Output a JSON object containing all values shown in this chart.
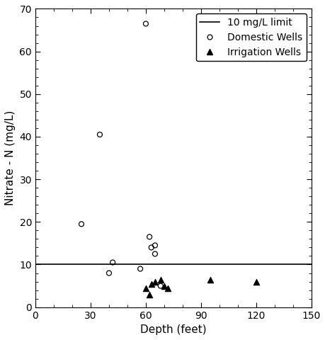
{
  "domestic_wells": {
    "depth": [
      25,
      35,
      40,
      42,
      57,
      60,
      62,
      63,
      65,
      65,
      68
    ],
    "nitrate": [
      19.5,
      40.5,
      8.0,
      10.5,
      9.0,
      66.5,
      16.5,
      14.0,
      14.5,
      12.5,
      5.0
    ]
  },
  "irrigation_wells": {
    "depth": [
      60,
      62,
      63,
      65,
      68,
      70,
      72,
      95,
      120
    ],
    "nitrate": [
      4.5,
      3.0,
      5.5,
      6.0,
      6.5,
      5.0,
      4.5,
      6.5,
      6.0
    ]
  },
  "limit_line_y": 10.0,
  "xlim": [
    0,
    150
  ],
  "ylim": [
    0,
    70
  ],
  "xticks": [
    0,
    30,
    60,
    90,
    120,
    150
  ],
  "yticks": [
    0,
    10,
    20,
    30,
    40,
    50,
    60,
    70
  ],
  "xlabel": "Depth (feet)",
  "ylabel": "Nitrate - N (mg/L)",
  "legend_limit_label": "10 mg/L limit",
  "legend_domestic_label": "Domestic Wells",
  "legend_irrigation_label": "Irrigation Wells",
  "domestic_color": "black",
  "irrigation_color": "black",
  "line_color": "black",
  "background_color": "white",
  "marker_size_domestic": 5,
  "marker_size_irrigation": 6,
  "font_size_labels": 11,
  "font_size_ticks": 10,
  "font_size_legend": 10,
  "x_minor_interval": 10,
  "y_minor_interval": 2
}
